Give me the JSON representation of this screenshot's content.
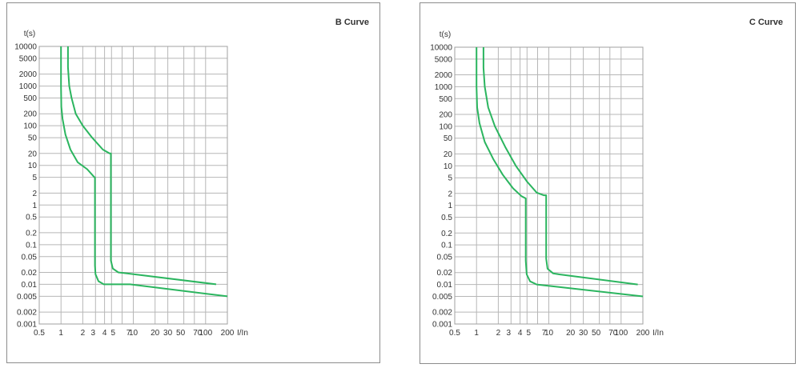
{
  "chart_data": [
    {
      "type": "line",
      "title": "B Curve",
      "xlabel": "I/In",
      "ylabel": "t(s)",
      "x_scale": "log",
      "y_scale": "log",
      "xlim": [
        0.5,
        200
      ],
      "ylim": [
        0.001,
        10000
      ],
      "grid": true,
      "x_ticks": [
        0.5,
        1,
        2,
        3,
        4,
        5,
        7,
        10,
        20,
        30,
        50,
        70,
        100,
        200
      ],
      "x_tick_labels": [
        "0.5",
        "1",
        "2",
        "3",
        "4",
        "5",
        "7",
        "10",
        "20",
        "30",
        "50",
        "70",
        "100",
        "200"
      ],
      "y_ticks": [
        0.001,
        0.002,
        0.005,
        0.01,
        0.02,
        0.05,
        0.1,
        0.2,
        0.5,
        1,
        2,
        5,
        10,
        20,
        50,
        100,
        200,
        500,
        1000,
        2000,
        5000,
        10000
      ],
      "y_tick_labels": [
        "0.001",
        "0.002",
        "0.005",
        "0.01",
        "0.02",
        "0.05",
        "0.1",
        "0.2",
        "0.5",
        "1",
        "2",
        "5",
        "10",
        "20",
        "50",
        "100",
        "200",
        "500",
        "1000",
        "2000",
        "5000",
        "10000"
      ],
      "series": [
        {
          "points": [
            [
              1.0,
              10000
            ],
            [
              1.0,
              1000
            ],
            [
              1.01,
              300
            ],
            [
              1.05,
              150
            ],
            [
              1.15,
              60
            ],
            [
              1.35,
              25
            ],
            [
              1.7,
              12
            ],
            [
              2.3,
              8
            ],
            [
              2.9,
              5
            ],
            [
              2.95,
              5
            ],
            [
              2.95,
              0.03
            ],
            [
              3.0,
              0.018
            ],
            [
              3.3,
              0.012
            ],
            [
              3.9,
              0.01
            ],
            [
              9.0,
              0.01
            ],
            [
              200,
              0.005
            ]
          ]
        },
        {
          "points": [
            [
              1.25,
              10000
            ],
            [
              1.25,
              3000
            ],
            [
              1.3,
              1000
            ],
            [
              1.4,
              500
            ],
            [
              1.6,
              200
            ],
            [
              2.0,
              100
            ],
            [
              2.7,
              50
            ],
            [
              3.8,
              25
            ],
            [
              4.7,
              20
            ],
            [
              4.9,
              20
            ],
            [
              4.9,
              0.04
            ],
            [
              5.2,
              0.025
            ],
            [
              6.2,
              0.02
            ],
            [
              8.0,
              0.019
            ],
            [
              140,
              0.01
            ]
          ]
        }
      ]
    },
    {
      "type": "line",
      "title": "C Curve",
      "xlabel": "I/In",
      "ylabel": "t(s)",
      "x_scale": "log",
      "y_scale": "log",
      "xlim": [
        0.5,
        200
      ],
      "ylim": [
        0.001,
        10000
      ],
      "grid": true,
      "x_ticks": [
        0.5,
        1,
        2,
        3,
        4,
        5,
        7,
        10,
        20,
        30,
        50,
        70,
        100,
        200
      ],
      "x_tick_labels": [
        "0.5",
        "1",
        "2",
        "3",
        "4",
        "5",
        "7",
        "10",
        "20",
        "30",
        "50",
        "70",
        "100",
        "200"
      ],
      "y_ticks": [
        0.001,
        0.002,
        0.005,
        0.01,
        0.02,
        0.05,
        0.1,
        0.2,
        0.5,
        1,
        2,
        5,
        10,
        20,
        50,
        100,
        200,
        500,
        1000,
        2000,
        5000,
        10000
      ],
      "y_tick_labels": [
        "0.001",
        "0.002",
        "0.005",
        "0.01",
        "0.02",
        "0.05",
        "0.1",
        "0.2",
        "0.5",
        "1",
        "2",
        "5",
        "10",
        "20",
        "50",
        "100",
        "200",
        "500",
        "1000",
        "2000",
        "5000",
        "10000"
      ],
      "series": [
        {
          "points": [
            [
              1.0,
              10000
            ],
            [
              1.0,
              1000
            ],
            [
              1.02,
              300
            ],
            [
              1.1,
              120
            ],
            [
              1.3,
              40
            ],
            [
              1.7,
              15
            ],
            [
              2.3,
              6
            ],
            [
              3.2,
              2.7
            ],
            [
              4.2,
              1.7
            ],
            [
              4.8,
              1.5
            ],
            [
              4.8,
              0.04
            ],
            [
              4.95,
              0.018
            ],
            [
              5.5,
              0.012
            ],
            [
              6.8,
              0.01
            ],
            [
              200,
              0.005
            ]
          ]
        },
        {
          "points": [
            [
              1.25,
              10000
            ],
            [
              1.25,
              3000
            ],
            [
              1.3,
              1000
            ],
            [
              1.45,
              300
            ],
            [
              1.8,
              100
            ],
            [
              2.5,
              30
            ],
            [
              3.5,
              10
            ],
            [
              5.0,
              4
            ],
            [
              6.8,
              2.1
            ],
            [
              8.5,
              1.8
            ],
            [
              9.2,
              1.8
            ],
            [
              9.2,
              0.045
            ],
            [
              9.6,
              0.025
            ],
            [
              11.5,
              0.019
            ],
            [
              14,
              0.018
            ],
            [
              170,
              0.01
            ]
          ]
        }
      ]
    }
  ]
}
